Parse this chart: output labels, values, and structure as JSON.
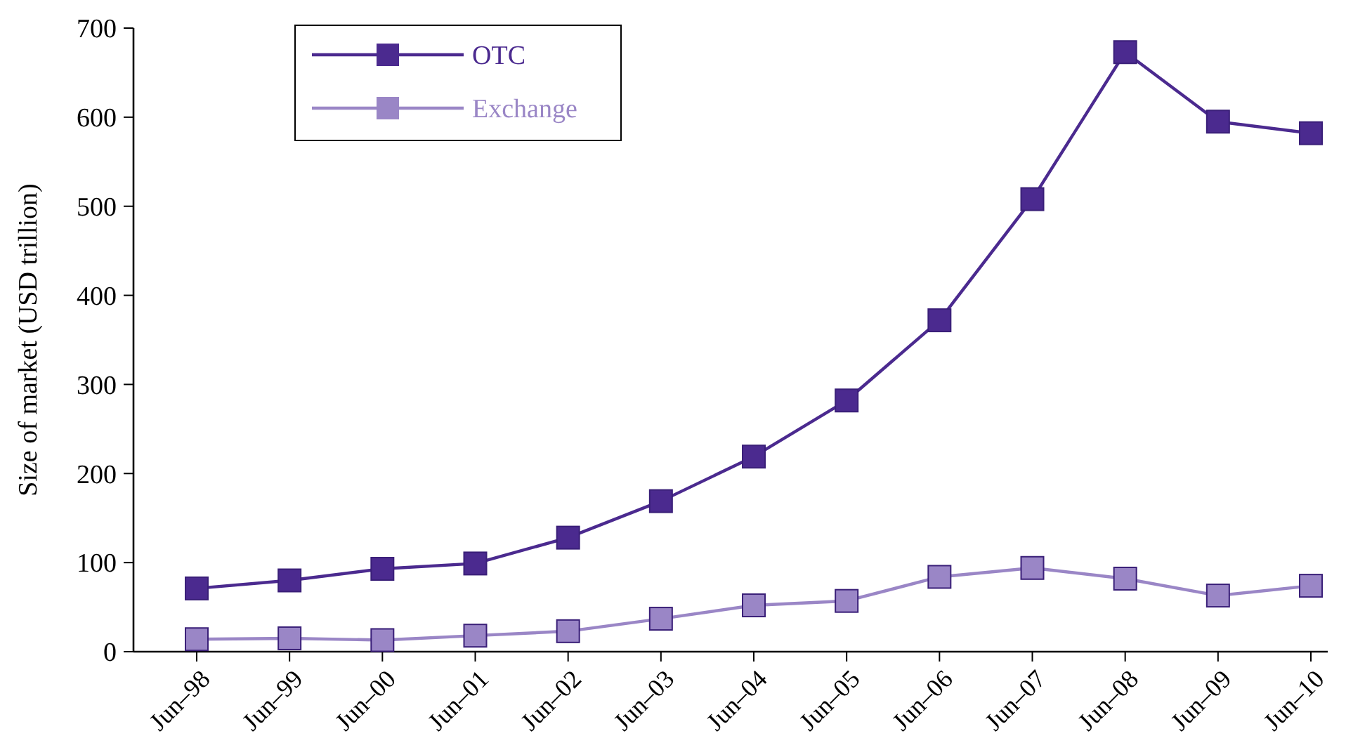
{
  "chart_data": {
    "type": "line",
    "ylabel": "Size of market (USD trillion)",
    "categories": [
      "Jun–98",
      "Jun–99",
      "Jun–00",
      "Jun–01",
      "Jun–02",
      "Jun–03",
      "Jun–04",
      "Jun–05",
      "Jun–06",
      "Jun–07",
      "Jun–08",
      "Jun–09",
      "Jun–10"
    ],
    "series": [
      {
        "name": "OTC",
        "color": "#4b2a8f",
        "values": [
          71,
          80,
          93,
          99,
          128,
          169,
          219,
          282,
          372,
          508,
          673,
          595,
          582
        ]
      },
      {
        "name": "Exchange",
        "color": "#9a86c6",
        "values": [
          14,
          15,
          13,
          18,
          23,
          37,
          52,
          57,
          84,
          94,
          82,
          63,
          74
        ]
      }
    ],
    "ylim": [
      0,
      700
    ],
    "yticks": [
      0,
      100,
      200,
      300,
      400,
      500,
      600,
      700
    ],
    "grid": false,
    "legend": "top left",
    "marker": "square",
    "line_style": "solid"
  }
}
